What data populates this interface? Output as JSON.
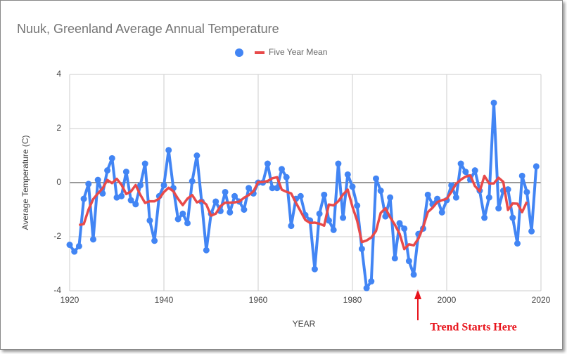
{
  "chart_data": {
    "type": "line",
    "title": "Nuuk, Greenland Average Annual Temperature",
    "x_label": "YEAR",
    "y_label": "Average Temperature (C)",
    "annotations": [
      "Trend Starts Here"
    ],
    "annotation_color": "#e8141c",
    "x": [
      1920,
      1921,
      1922,
      1923,
      1924,
      1925,
      1926,
      1927,
      1928,
      1929,
      1930,
      1931,
      1932,
      1933,
      1934,
      1935,
      1936,
      1937,
      1938,
      1939,
      1940,
      1941,
      1942,
      1943,
      1944,
      1945,
      1946,
      1947,
      1948,
      1949,
      1950,
      1951,
      1952,
      1953,
      1954,
      1955,
      1956,
      1957,
      1958,
      1959,
      1960,
      1961,
      1962,
      1963,
      1964,
      1965,
      1966,
      1967,
      1968,
      1969,
      1970,
      1971,
      1972,
      1973,
      1974,
      1975,
      1976,
      1977,
      1978,
      1979,
      1980,
      1981,
      1982,
      1983,
      1984,
      1985,
      1986,
      1987,
      1988,
      1989,
      1990,
      1991,
      1992,
      1993,
      1994,
      1995,
      1996,
      1997,
      1998,
      1999,
      2000,
      2001,
      2002,
      2003,
      2004,
      2005,
      2006,
      2007,
      2008,
      2009,
      2010,
      2011,
      2012,
      2013,
      2014,
      2015,
      2016,
      2017,
      2018,
      2019
    ],
    "series": [
      {
        "color": "#4285f4",
        "markers": true,
        "values": [
          -2.3,
          -2.55,
          -2.35,
          -0.6,
          -0.05,
          -2.1,
          0.1,
          -0.4,
          0.45,
          0.9,
          -0.55,
          -0.5,
          0.4,
          -0.65,
          -0.8,
          -0.1,
          0.7,
          -1.4,
          -2.15,
          -0.5,
          -0.1,
          1.2,
          -0.2,
          -1.35,
          -1.15,
          -1.5,
          0.05,
          1.0,
          -0.7,
          -2.5,
          -1.15,
          -0.7,
          -1.05,
          -0.35,
          -1.1,
          -0.5,
          -0.7,
          -1.0,
          -0.2,
          -0.4,
          0.0,
          0.0,
          0.7,
          -0.2,
          -0.2,
          0.5,
          0.2,
          -1.6,
          -0.6,
          -0.5,
          -1.2,
          -1.4,
          -3.2,
          -1.15,
          -0.45,
          -1.4,
          -1.75,
          0.7,
          -1.3,
          0.3,
          -0.15,
          -0.85,
          -2.45,
          -3.9,
          -3.65,
          0.15,
          -0.3,
          -1.25,
          -0.55,
          -2.8,
          -1.5,
          -1.7,
          -2.9,
          -3.4,
          -1.9,
          -1.7,
          -0.45,
          -0.8,
          -0.6,
          -1.1,
          -0.65,
          -0.1,
          -0.55,
          0.7,
          0.4,
          0.1,
          0.45,
          -0.3,
          -1.3,
          -0.55,
          2.95,
          -0.95,
          -0.3,
          -0.25,
          -1.3,
          -2.25,
          0.25,
          -0.35,
          -1.8,
          0.6
        ]
      },
      {
        "name": "Five Year Mean",
        "color": "#e84a4a",
        "markers": false,
        "values": [
          null,
          null,
          -1.57,
          -1.53,
          -1.0,
          -0.61,
          -0.4,
          -0.21,
          0.1,
          -0.02,
          0.14,
          -0.08,
          -0.42,
          -0.33,
          -0.09,
          -0.45,
          -0.75,
          -0.69,
          -0.69,
          -0.59,
          -0.35,
          -0.19,
          -0.32,
          -0.6,
          -0.83,
          -0.59,
          -0.46,
          -0.73,
          -0.66,
          -0.81,
          -1.22,
          -1.15,
          -0.87,
          -0.74,
          -0.74,
          -0.73,
          -0.7,
          -0.56,
          -0.46,
          -0.32,
          0.02,
          0.02,
          0.06,
          0.16,
          0.2,
          -0.26,
          -0.34,
          -0.4,
          -0.74,
          -1.06,
          -1.38,
          -1.49,
          -1.48,
          -1.52,
          -1.59,
          -0.81,
          -0.84,
          -0.69,
          -0.44,
          -0.26,
          -0.89,
          -1.41,
          -2.2,
          -2.14,
          -2.03,
          -1.79,
          -1.12,
          -0.95,
          -1.28,
          -1.56,
          -1.89,
          -2.46,
          -2.28,
          -2.32,
          -2.07,
          -1.65,
          -1.09,
          -0.93,
          -0.72,
          -0.65,
          -0.6,
          -0.34,
          -0.04,
          0.11,
          0.22,
          0.27,
          -0.13,
          -0.32,
          0.25,
          -0.03,
          -0.03,
          0.18,
          0.03,
          -1.01,
          -0.77,
          -0.78,
          -1.09,
          -0.71,
          null,
          null
        ]
      }
    ],
    "xlim": [
      1920,
      2020
    ],
    "xticks": [
      1920,
      1940,
      1960,
      1980,
      2000,
      2020
    ],
    "ylim": [
      -4,
      4
    ],
    "yticks": [
      -4,
      -2,
      0,
      2,
      4
    ],
    "grid": true,
    "legend": "top"
  }
}
